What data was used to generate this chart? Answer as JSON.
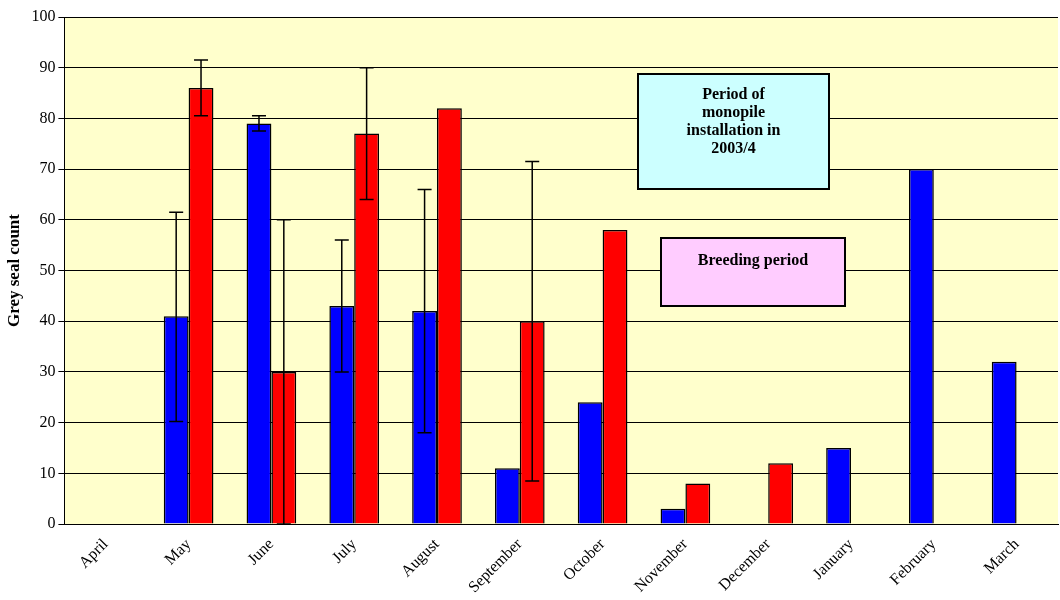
{
  "chart_data": {
    "type": "bar",
    "categories": [
      "April",
      "May",
      "June",
      "July",
      "August",
      "September",
      "October",
      "November",
      "December",
      "January",
      "February",
      "March"
    ],
    "series": [
      {
        "color": "#0000ff",
        "values": [
          0,
          41,
          79,
          43,
          42,
          11,
          24,
          3,
          null,
          15,
          70,
          32
        ],
        "errors": [
          null,
          [
            20.2,
            61.5
          ],
          [
            77.5,
            80.5
          ],
          [
            30,
            56
          ],
          [
            18,
            66
          ],
          null,
          null,
          null,
          null,
          null,
          null,
          null
        ]
      },
      {
        "color": "#ff0000",
        "values": [
          null,
          86,
          30,
          77,
          82,
          40,
          58,
          8,
          12,
          null,
          null,
          null
        ],
        "errors": [
          null,
          [
            80.5,
            91.5
          ],
          [
            0,
            60
          ],
          [
            64,
            90
          ],
          null,
          [
            8.5,
            71.5
          ],
          null,
          null,
          null,
          null,
          null,
          null
        ]
      }
    ],
    "ylabel": "Grey seal count",
    "ylim": [
      0,
      100
    ],
    "yticks": [
      0,
      10,
      20,
      30,
      40,
      50,
      60,
      70,
      80,
      90,
      100
    ],
    "grid": "y",
    "legend": false,
    "annotations": [
      "Period of monopile installation in 2003/4",
      "Breeding period"
    ]
  }
}
